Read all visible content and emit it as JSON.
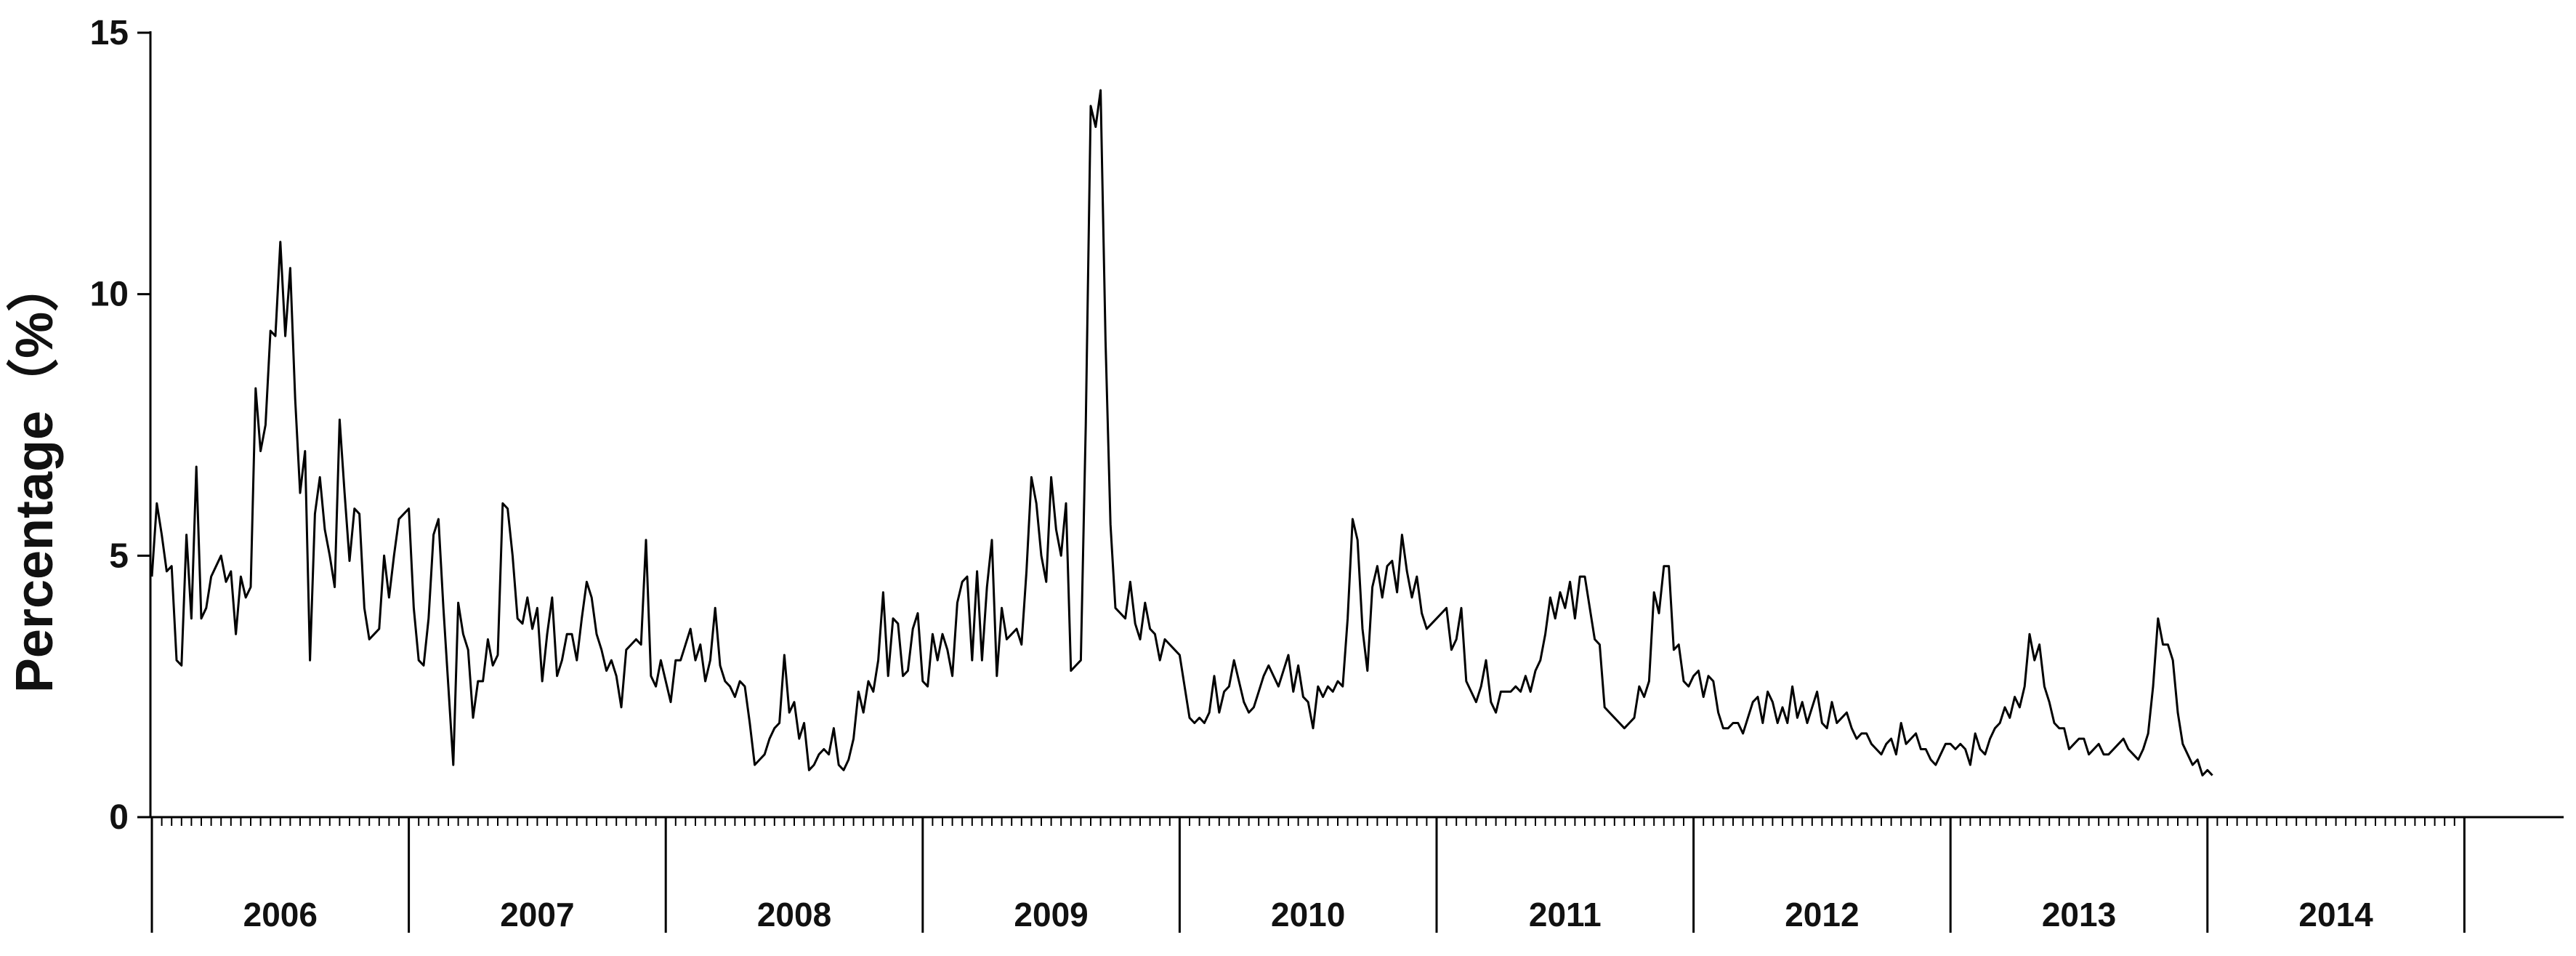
{
  "chart_data": {
    "type": "line",
    "title": "",
    "xlabel": "",
    "ylabel": "Percentage（%）",
    "ylim": [
      0,
      15
    ],
    "yticks": [
      0,
      5,
      10,
      15
    ],
    "ytick_labels": [
      "0",
      "5",
      "10",
      "15"
    ],
    "x_unit": "week",
    "points_per_year": 52,
    "grid": false,
    "legend": "none",
    "line_color": "#000000",
    "years": [
      "2006",
      "2007",
      "2008",
      "2009",
      "2010",
      "2011",
      "2012",
      "2013",
      "2014"
    ],
    "series": [
      {
        "values": [
          4.6,
          6.0,
          5.4,
          4.7,
          4.8,
          3.0,
          2.9,
          5.4,
          3.8,
          6.7,
          3.8,
          4.0,
          4.6,
          4.8,
          5.0,
          4.5,
          4.7,
          3.5,
          4.6,
          4.2,
          4.4,
          8.2,
          7.0,
          7.5,
          9.3,
          9.2,
          11.0,
          9.2,
          10.5,
          8.0,
          6.2,
          7.0,
          3.0,
          5.8,
          6.5,
          5.5,
          5.0,
          4.4,
          7.6,
          6.2,
          4.9,
          5.9,
          5.8,
          4.0,
          3.4,
          3.5,
          3.6,
          5.0,
          4.2,
          5.0,
          5.7,
          5.8,
          5.9,
          4.0,
          3.0,
          2.9,
          3.8,
          5.4,
          5.7,
          4.0,
          2.5,
          1.0,
          4.1,
          3.5,
          3.2,
          1.9,
          2.6,
          2.6,
          3.4,
          2.9,
          3.1,
          6.0,
          5.9,
          5.0,
          3.8,
          3.7,
          4.2,
          3.6,
          4.0,
          2.6,
          3.5,
          4.2,
          2.7,
          3.0,
          3.5,
          3.5,
          3.0,
          3.8,
          4.5,
          4.2,
          3.5,
          3.2,
          2.8,
          3.0,
          2.7,
          2.1,
          3.2,
          3.3,
          3.4,
          3.3,
          5.3,
          2.7,
          2.5,
          3.0,
          2.6,
          2.2,
          3.0,
          3.0,
          3.3,
          3.6,
          3.0,
          3.3,
          2.6,
          3.0,
          4.0,
          2.9,
          2.6,
          2.5,
          2.3,
          2.6,
          2.5,
          1.8,
          1.0,
          1.1,
          1.2,
          1.5,
          1.7,
          1.8,
          3.1,
          2.0,
          2.2,
          1.5,
          1.8,
          0.9,
          1.0,
          1.2,
          1.3,
          1.2,
          1.7,
          1.0,
          0.9,
          1.1,
          1.5,
          2.4,
          2.0,
          2.6,
          2.4,
          3.0,
          4.3,
          2.7,
          3.8,
          3.7,
          2.7,
          2.8,
          3.6,
          3.9,
          2.6,
          2.5,
          3.5,
          3.0,
          3.5,
          3.2,
          2.7,
          4.1,
          4.5,
          4.6,
          3.0,
          4.7,
          3.0,
          4.4,
          5.3,
          2.7,
          4.0,
          3.4,
          3.5,
          3.6,
          3.3,
          4.7,
          6.5,
          6.0,
          5.0,
          4.5,
          6.5,
          5.5,
          5.0,
          6.0,
          2.8,
          2.9,
          3.0,
          7.5,
          13.6,
          13.2,
          13.9,
          9.1,
          5.6,
          4.0,
          3.9,
          3.8,
          4.5,
          3.7,
          3.4,
          4.1,
          3.6,
          3.5,
          3.0,
          3.4,
          3.3,
          3.2,
          3.1,
          2.5,
          1.9,
          1.8,
          1.9,
          1.8,
          2.0,
          2.7,
          2.0,
          2.4,
          2.5,
          3.0,
          2.6,
          2.2,
          2.0,
          2.1,
          2.4,
          2.7,
          2.9,
          2.7,
          2.5,
          2.8,
          3.1,
          2.4,
          2.9,
          2.3,
          2.2,
          1.7,
          2.5,
          2.3,
          2.5,
          2.4,
          2.6,
          2.5,
          3.8,
          5.7,
          5.3,
          3.6,
          2.8,
          4.4,
          4.8,
          4.2,
          4.8,
          4.9,
          4.3,
          5.4,
          4.7,
          4.2,
          4.6,
          3.9,
          3.6,
          3.7,
          3.8,
          3.9,
          4.0,
          3.2,
          3.4,
          4.0,
          2.6,
          2.4,
          2.2,
          2.5,
          3.0,
          2.2,
          2.0,
          2.4,
          2.4,
          2.4,
          2.5,
          2.4,
          2.7,
          2.4,
          2.8,
          3.0,
          3.5,
          4.2,
          3.8,
          4.3,
          4.0,
          4.5,
          3.8,
          4.6,
          4.6,
          4.0,
          3.4,
          3.3,
          2.1,
          2.0,
          1.9,
          1.8,
          1.7,
          1.8,
          1.9,
          2.5,
          2.3,
          2.6,
          4.3,
          3.9,
          4.8,
          4.8,
          3.2,
          3.3,
          2.6,
          2.5,
          2.7,
          2.8,
          2.3,
          2.7,
          2.6,
          2.0,
          1.7,
          1.7,
          1.8,
          1.8,
          1.6,
          1.9,
          2.2,
          2.3,
          1.8,
          2.4,
          2.2,
          1.8,
          2.1,
          1.8,
          2.5,
          1.9,
          2.2,
          1.8,
          2.1,
          2.4,
          1.8,
          1.7,
          2.2,
          1.8,
          1.9,
          2.0,
          1.7,
          1.5,
          1.6,
          1.6,
          1.4,
          1.3,
          1.2,
          1.4,
          1.5,
          1.2,
          1.8,
          1.4,
          1.5,
          1.6,
          1.3,
          1.3,
          1.1,
          1.0,
          1.2,
          1.4,
          1.4,
          1.3,
          1.4,
          1.3,
          1.0,
          1.6,
          1.3,
          1.2,
          1.5,
          1.7,
          1.8,
          2.1,
          1.9,
          2.3,
          2.1,
          2.5,
          3.5,
          3.0,
          3.3,
          2.5,
          2.2,
          1.8,
          1.7,
          1.7,
          1.3,
          1.4,
          1.5,
          1.5,
          1.2,
          1.3,
          1.4,
          1.2,
          1.2,
          1.3,
          1.4,
          1.5,
          1.3,
          1.2,
          1.1,
          1.3,
          1.6,
          2.5,
          3.8,
          3.3,
          3.3,
          3.0,
          2.0,
          1.4,
          1.2,
          1.0,
          1.1,
          0.8,
          0.9,
          0.8
        ]
      }
    ]
  }
}
